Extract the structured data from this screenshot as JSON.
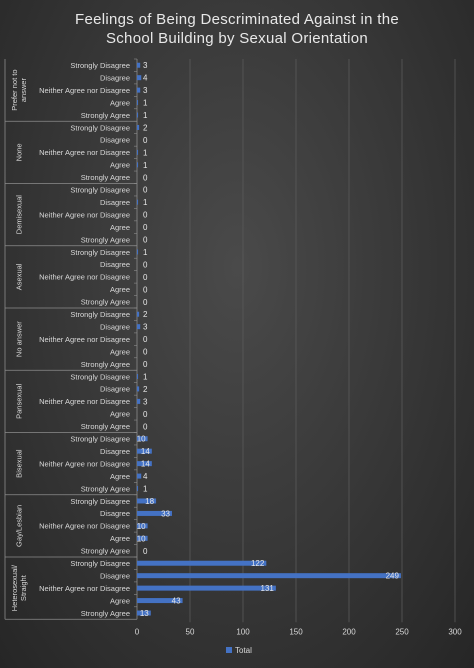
{
  "chart_data": {
    "type": "bar",
    "orientation": "horizontal",
    "title_lines": [
      "Feelings of Being Descriminated Against in the",
      "School Building by Sexual Orientation"
    ],
    "xlim": [
      0,
      300
    ],
    "x_ticks": [
      0,
      50,
      100,
      150,
      200,
      250,
      300
    ],
    "bar_color": "#4472c4",
    "legend": {
      "position": "bottom",
      "entries": [
        "Total"
      ]
    },
    "groups": [
      {
        "name": "Prefer not to answer",
        "name_lines": [
          "Prefer not to",
          "answer"
        ],
        "categories": [
          "Strongly Disagree",
          "Disagree",
          "Neither Agree nor Disagree",
          "Agree",
          "Strongly Agree"
        ],
        "values": [
          3,
          4,
          3,
          1,
          1
        ]
      },
      {
        "name": "None",
        "name_lines": [
          "None"
        ],
        "categories": [
          "Strongly Disagree",
          "Disagree",
          "Neither Agree nor Disagree",
          "Agree",
          "Strongly Agree"
        ],
        "values": [
          2,
          0,
          1,
          1,
          0
        ]
      },
      {
        "name": "Demisexual",
        "name_lines": [
          "Demisexual"
        ],
        "categories": [
          "Strongly Disagree",
          "Disagree",
          "Neither Agree nor Disagree",
          "Agree",
          "Strongly Agree"
        ],
        "values": [
          0,
          1,
          0,
          0,
          0
        ]
      },
      {
        "name": "Asexual",
        "name_lines": [
          "Asexual"
        ],
        "categories": [
          "Strongly Disagree",
          "Disagree",
          "Neither Agree nor Disagree",
          "Agree",
          "Strongly Agree"
        ],
        "values": [
          1,
          0,
          0,
          0,
          0
        ]
      },
      {
        "name": "No answer",
        "name_lines": [
          "No answer"
        ],
        "categories": [
          "Strongly Disagree",
          "Disagree",
          "Neither Agree nor Disagree",
          "Agree",
          "Strongly Agree"
        ],
        "values": [
          2,
          3,
          0,
          0,
          0
        ]
      },
      {
        "name": "Pansexual",
        "name_lines": [
          "Pansexual"
        ],
        "categories": [
          "Strongly Disagree",
          "Disagree",
          "Neither Agree nor Disagree",
          "Agree",
          "Strongly Agree"
        ],
        "values": [
          1,
          2,
          3,
          0,
          0
        ]
      },
      {
        "name": "Bisexual",
        "name_lines": [
          "Bisexual"
        ],
        "categories": [
          "Strongly Disagree",
          "Disagree",
          "Neither Agree nor Disagree",
          "Agree",
          "Strongly Agree"
        ],
        "values": [
          10,
          14,
          14,
          4,
          1
        ]
      },
      {
        "name": "Gay/Lesbian",
        "name_lines": [
          "Gay/Lesbian"
        ],
        "categories": [
          "Strongly Disagree",
          "Disagree",
          "Neither Agree nor Disagree",
          "Agree",
          "Strongly Agree"
        ],
        "values": [
          18,
          33,
          10,
          10,
          0
        ]
      },
      {
        "name": "Heterosexual/ Straight",
        "name_lines": [
          "Heterosexual/",
          "Straight"
        ],
        "categories": [
          "Strongly Disagree",
          "Disagree",
          "Neither Agree nor Disagree",
          "Agree",
          "Strongly Agree"
        ],
        "values": [
          122,
          249,
          131,
          43,
          13
        ]
      }
    ]
  }
}
